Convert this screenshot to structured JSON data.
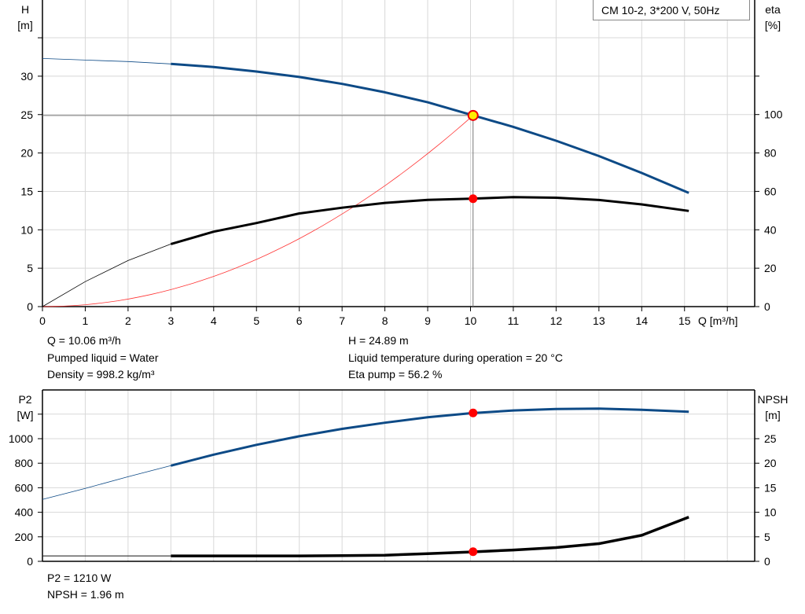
{
  "legend_title": "CM 10-2, 3*200 V, 50Hz",
  "info_top": {
    "q": "Q = 10.06 m³/h",
    "liquid": "Pumped liquid = Water",
    "density": "Density = 998.2 kg/m³",
    "h": "H = 24.89 m",
    "temp": "Liquid temperature during operation = 20 °C",
    "eta": "Eta pump = 56.2 %"
  },
  "info_bottom": {
    "p2": "P2 = 1210 W",
    "npsh": "NPSH = 1.96 m"
  },
  "chart_data": [
    {
      "type": "line",
      "xlabel": "Q [m³/h]",
      "ylabel_left": [
        "H",
        "[m]"
      ],
      "ylabel_right": [
        "eta",
        "[%]"
      ],
      "xlim": [
        0,
        16
      ],
      "ylim_left": [
        0,
        35
      ],
      "ylim_right": [
        0,
        140
      ],
      "x_ticks": [
        "0",
        "1",
        "2",
        "3",
        "4",
        "5",
        "6",
        "7",
        "8",
        "9",
        "10",
        "11",
        "12",
        "13",
        "14",
        "15"
      ],
      "y_ticks_left": [
        "0",
        "5",
        "10",
        "15",
        "20",
        "25",
        "30"
      ],
      "y_ticks_right": [
        "0",
        "20",
        "40",
        "60",
        "80",
        "100"
      ],
      "grid": true,
      "x": [
        0,
        1,
        2,
        3,
        4,
        5,
        6,
        7,
        8,
        9,
        10,
        11,
        12,
        13,
        14,
        15.1
      ],
      "series": [
        {
          "id": "H",
          "axis": "left",
          "color": "#0d4a86",
          "values": [
            32.3,
            32.1,
            31.9,
            31.6,
            31.2,
            30.6,
            29.9,
            29.0,
            27.9,
            26.6,
            25.0,
            23.4,
            21.6,
            19.6,
            17.4,
            14.8
          ]
        },
        {
          "id": "eta",
          "axis": "right",
          "color": "#000000",
          "values": [
            0,
            13,
            24,
            32.6,
            39,
            43.5,
            48.5,
            51.5,
            54,
            55.6,
            56.2,
            57,
            56.7,
            55.5,
            53.2,
            49.8
          ]
        }
      ],
      "system_curve": {
        "color": "#ff3333",
        "q_end": 10.06,
        "h_end": 24.89
      },
      "operating_point": {
        "q": 10.06,
        "h": 24.89,
        "eta": 56.2
      }
    },
    {
      "type": "line",
      "ylabel_left": [
        "P2",
        "[W]"
      ],
      "ylabel_right": [
        "NPSH",
        "[m]"
      ],
      "xlim": [
        0,
        16
      ],
      "ylim_left": [
        0,
        1200
      ],
      "ylim_right": [
        0,
        30
      ],
      "y_ticks_left": [
        "0",
        "200",
        "400",
        "600",
        "800",
        "1000"
      ],
      "y_ticks_right": [
        "0",
        "5",
        "10",
        "15",
        "20",
        "25"
      ],
      "grid": true,
      "x": [
        0,
        1,
        2,
        3,
        4,
        5,
        6,
        7,
        8,
        9,
        10,
        11,
        12,
        13,
        14,
        15.1
      ],
      "series": [
        {
          "id": "P2",
          "axis": "left",
          "color": "#0d4a86",
          "values": [
            505,
            595,
            690,
            780,
            870,
            950,
            1020,
            1080,
            1130,
            1175,
            1208,
            1230,
            1242,
            1245,
            1235,
            1220
          ]
        },
        {
          "id": "NPSH",
          "axis": "right",
          "color": "#000000",
          "values": [
            1.1,
            1.1,
            1.1,
            1.1,
            1.1,
            1.1,
            1.1,
            1.15,
            1.25,
            1.55,
            1.9,
            2.3,
            2.8,
            3.6,
            5.3,
            9.0
          ]
        }
      ],
      "operating_point": {
        "q": 10.06,
        "p2": 1210,
        "npsh": 1.96
      }
    }
  ]
}
